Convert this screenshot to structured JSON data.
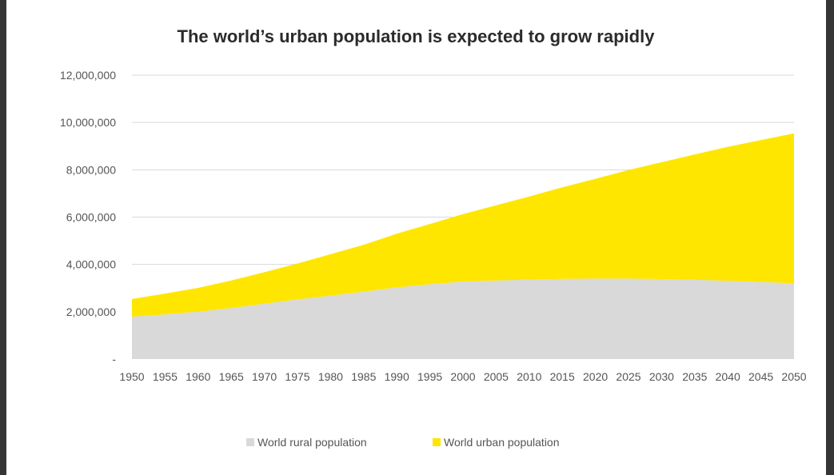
{
  "chart_data": {
    "type": "area",
    "stacked": true,
    "title": "The world’s urban population is expected to grow rapidly",
    "xlabel": "",
    "ylabel": "",
    "x": [
      "1950",
      "1955",
      "1960",
      "1965",
      "1970",
      "1975",
      "1980",
      "1985",
      "1990",
      "1995",
      "2000",
      "2005",
      "2010",
      "2015",
      "2020",
      "2025",
      "2030",
      "2035",
      "2040",
      "2045",
      "2050"
    ],
    "ylim": [
      0,
      12000000
    ],
    "yticks": [
      0,
      2000000,
      4000000,
      6000000,
      8000000,
      10000000,
      12000000
    ],
    "ytick_labels": [
      "-",
      "2,000,000",
      "4,000,000",
      "6,000,000",
      "8,000,000",
      "10,000,000",
      "12,000,000"
    ],
    "grid": true,
    "legend_position": "bottom",
    "series": [
      {
        "name": "World rural population",
        "color": "#d9d9d9",
        "values": [
          1790000,
          1890000,
          2000000,
          2160000,
          2340000,
          2520000,
          2680000,
          2850000,
          3030000,
          3160000,
          3280000,
          3320000,
          3360000,
          3390000,
          3400000,
          3400000,
          3380000,
          3350000,
          3310000,
          3260000,
          3200000
        ]
      },
      {
        "name": "World urban population",
        "color": "#ffe600",
        "values": [
          750000,
          880000,
          1010000,
          1160000,
          1330000,
          1520000,
          1750000,
          1980000,
          2270000,
          2550000,
          2850000,
          3180000,
          3510000,
          3870000,
          4220000,
          4590000,
          4940000,
          5300000,
          5660000,
          6000000,
          6340000
        ]
      }
    ]
  }
}
